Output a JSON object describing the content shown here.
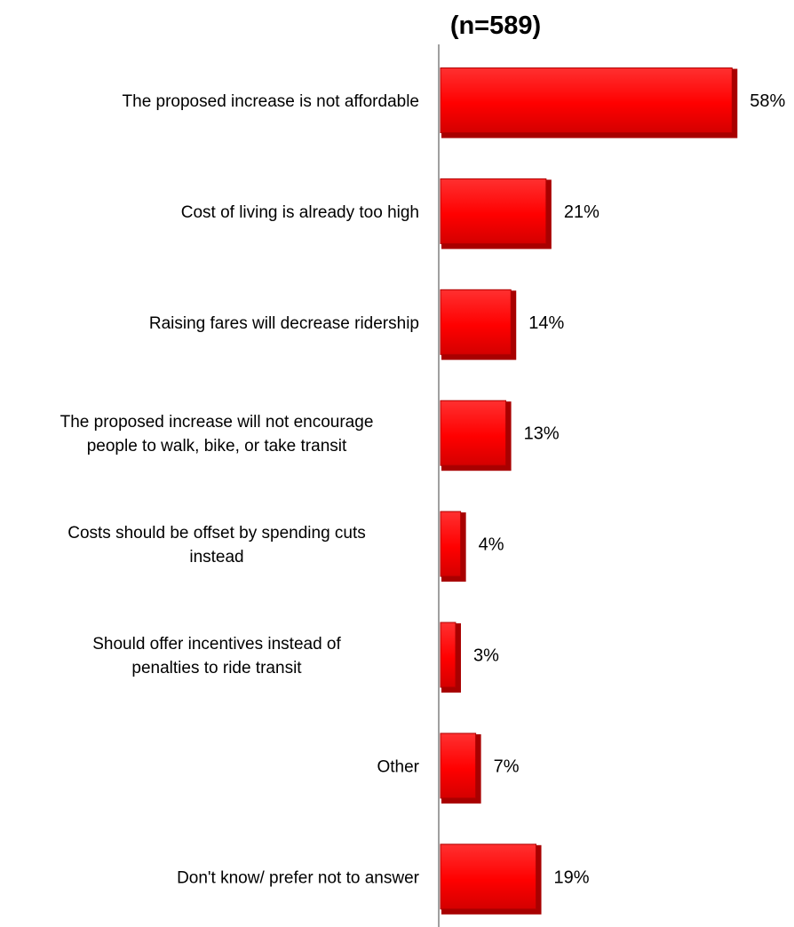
{
  "chart_data": {
    "type": "bar",
    "orientation": "horizontal",
    "title": "(n=589)",
    "categories": [
      "The proposed increase is not affordable",
      "Cost of living is already too high",
      "Raising fares will decrease ridership",
      "The proposed increase will not encourage people to walk, bike, or take transit",
      "Costs should be offset by spending cuts instead",
      "Should offer incentives instead of penalties to ride transit",
      "Other",
      "Don't know/ prefer not to answer"
    ],
    "category_lines": [
      [
        "The proposed increase is not affordable"
      ],
      [
        "Cost of living is already too high"
      ],
      [
        "Raising fares will decrease ridership"
      ],
      [
        "The proposed increase will not encourage",
        "people to walk, bike, or take transit"
      ],
      [
        "Costs should be offset by spending cuts",
        "instead"
      ],
      [
        "Should offer incentives instead of",
        "penalties to ride transit"
      ],
      [
        "Other"
      ],
      [
        "Don't know/ prefer not to answer"
      ]
    ],
    "values": [
      58,
      21,
      14,
      13,
      4,
      3,
      7,
      19
    ],
    "value_labels": [
      "58%",
      "21%",
      "14%",
      "13%",
      "4%",
      "3%",
      "7%",
      "19%"
    ],
    "unit": "%",
    "bar_color": "#ff0000",
    "bar_edge_color": "#a80000",
    "axis_color": "#808080",
    "grid": false,
    "legend": "none"
  }
}
